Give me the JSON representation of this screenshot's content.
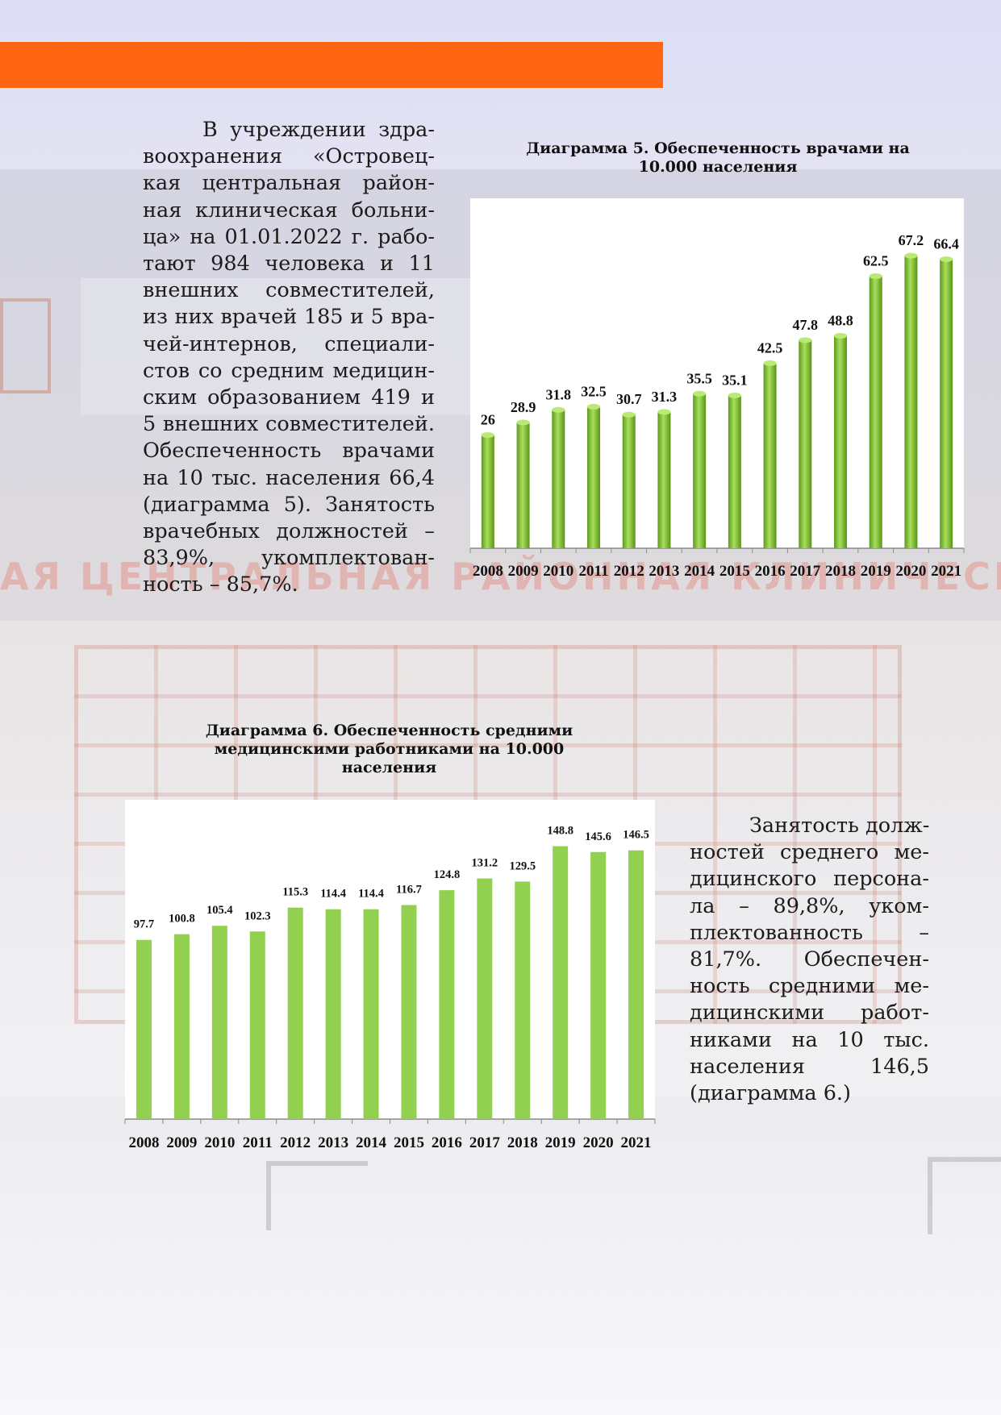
{
  "paragraph1": {
    "lines": [
      "В учреждении здра-",
      "воохранения «Островец-",
      "кая центральная район-",
      "ная клиническая больни-",
      "ца» на 01.01.2022 г. рабо-",
      "тают  984 человека и 11",
      "внешних  совместителей,",
      "из них врачей 185 и 5 вра-",
      "чей-интернов, специали-",
      "стов со средним медицин-",
      "ским образованием 419 и",
      "5 внешних совместителей.",
      "Обеспеченность врачами",
      "на 10 тыс. населения 66,4",
      "(диаграмма 5). Занятость",
      "врачебных должностей –",
      "83,9%,   укомплектован-",
      "ность – 85,7%."
    ]
  },
  "paragraph2": {
    "lines": [
      "Занятость долж-",
      "ностей среднего ме-",
      "дицинского персона-",
      "ла – 89,8%, уком-",
      "плектованность –",
      "81,7%. Обеспечен-",
      "ность средними ме-",
      "дицинскими работ-",
      "никами на 10 тыс.",
      "населения 146,5",
      "(диаграмма 6.)"
    ]
  },
  "chart_data": [
    {
      "type": "bar",
      "title": "Диаграмма 5. Обеспеченность врачами на 10.000 населения",
      "title_lines": [
        "Диаграмма 5. Обеспеченность врачами на",
        "10.000 населения"
      ],
      "categories": [
        "2008",
        "2009",
        "2010",
        "2011",
        "2012",
        "2013",
        "2014",
        "2015",
        "2016",
        "2017",
        "2018",
        "2019",
        "2020",
        "2021"
      ],
      "values": [
        26,
        28.9,
        31.8,
        32.5,
        30.7,
        31.3,
        35.5,
        35.1,
        42.5,
        47.8,
        48.8,
        62.5,
        67.2,
        66.4
      ],
      "value_labels": [
        "26",
        "28.9",
        "31.8",
        "32.5",
        "30.7",
        "31.3",
        "35.5",
        "35.1",
        "42.5",
        "47.8",
        "48.8",
        "62.5",
        "67.2",
        "66.4"
      ],
      "ylim": [
        0,
        70
      ],
      "grid": false,
      "legend": "none",
      "bar_color": "#8cc83c",
      "bar_style": "3d-cylinder"
    },
    {
      "type": "bar",
      "title": "Диаграмма 6. Обеспеченность средними медицинскими работниками на 10.000 населения",
      "title_lines": [
        "Диаграмма 6. Обеспеченность средними",
        "медицинскими работниками на 10.000",
        "населения"
      ],
      "categories": [
        "2008",
        "2009",
        "2010",
        "2011",
        "2012",
        "2013",
        "2014",
        "2015",
        "2016",
        "2017",
        "2018",
        "2019",
        "2020",
        "2021"
      ],
      "values": [
        97.7,
        100.8,
        105.4,
        102.3,
        115.3,
        114.4,
        114.4,
        116.7,
        124.8,
        131.2,
        129.5,
        148.8,
        145.6,
        146.5
      ],
      "value_labels": [
        "97.7",
        "100.8",
        "105.4",
        "102.3",
        "115.3",
        "114.4",
        "114.4",
        "116.7",
        "124.8",
        "131.2",
        "129.5",
        "148.8",
        "145.6",
        "146.5"
      ],
      "ylim": [
        0,
        160
      ],
      "grid": false,
      "legend": "none",
      "bar_color": "#92d050",
      "bar_style": "flat"
    }
  ]
}
